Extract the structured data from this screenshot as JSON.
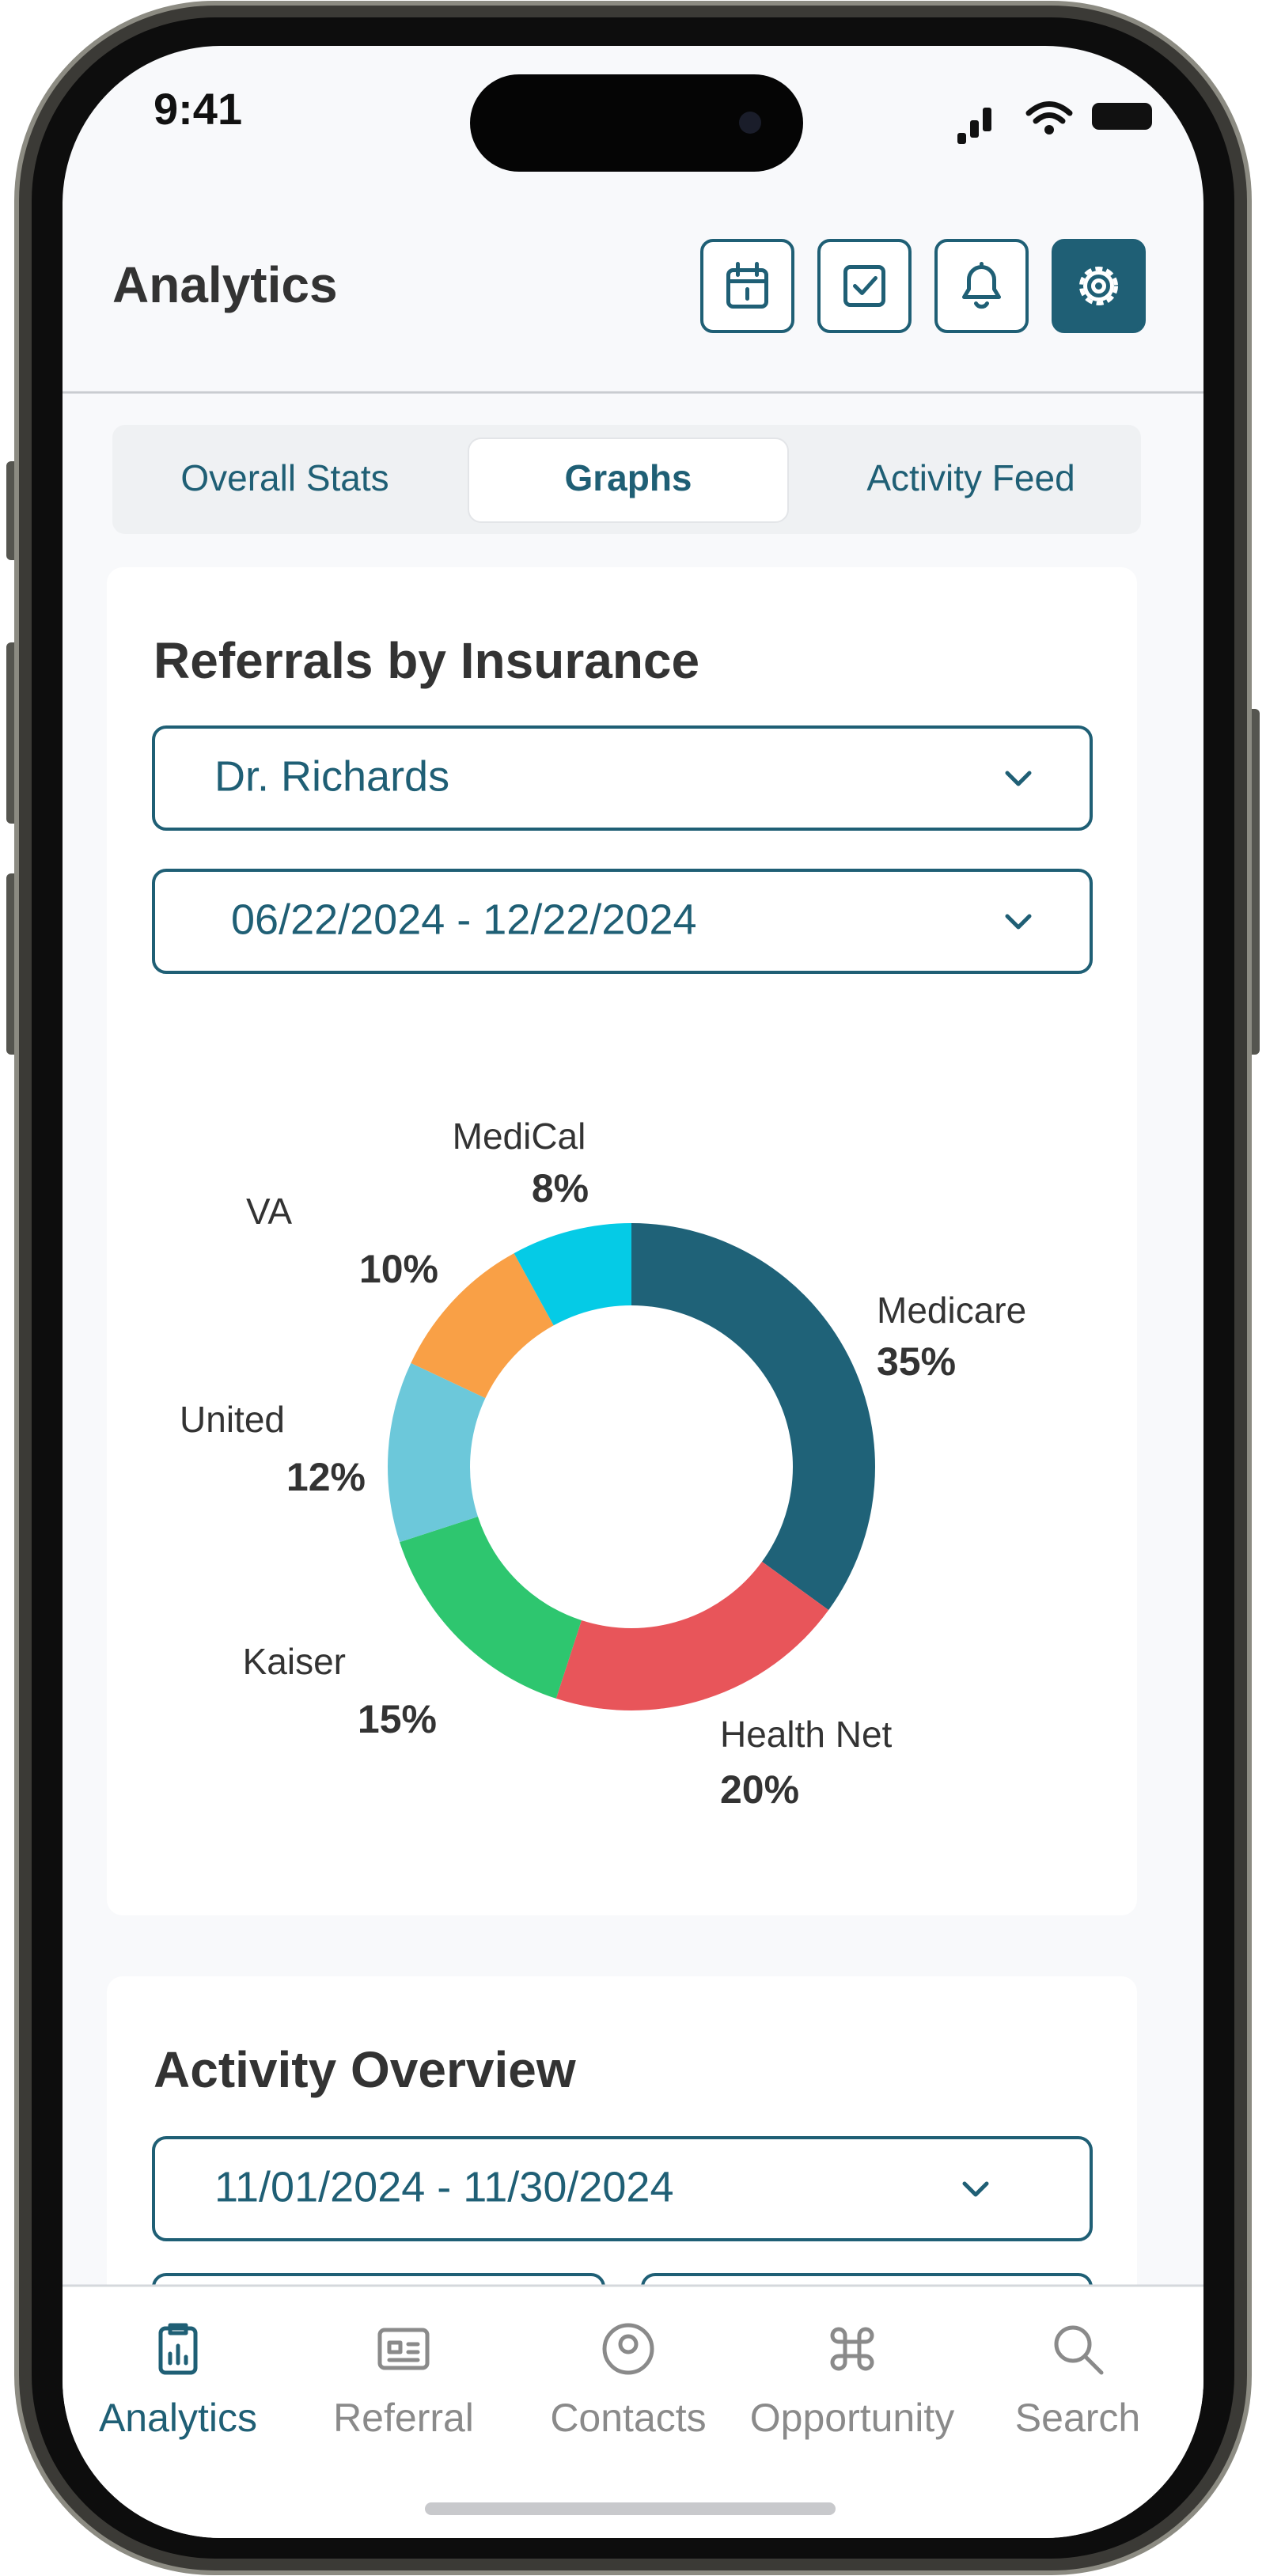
{
  "status_bar": {
    "time": "9:41"
  },
  "header": {
    "title": "Analytics"
  },
  "tabs": [
    "Overall Stats",
    "Graphs",
    "Activity Feed"
  ],
  "referrals_card": {
    "doctor_filter": "Dr. Richards",
    "date_range": "06/22/2024 - 12/22/2024"
  },
  "chart_data": {
    "type": "pie",
    "title": "Referrals by Insurance",
    "categories": [
      "Medicare",
      "Health Net",
      "Kaiser",
      "United",
      "VA",
      "MediCal"
    ],
    "values": [
      35,
      20,
      15,
      12,
      10,
      8
    ],
    "value_labels": [
      "35%",
      "20%",
      "15%",
      "12%",
      "10%",
      "8%"
    ],
    "colors": [
      "#1f6278",
      "#e8555a",
      "#2ec66f",
      "#6cc8da",
      "#f9a046",
      "#05cbe6"
    ],
    "donut": true
  },
  "activity_card": {
    "title": "Activity Overview",
    "date_range": "11/01/2024 - 11/30/2024"
  },
  "bottom_nav": [
    "Analytics",
    "Referral",
    "Contacts",
    "Opportunity",
    "Search"
  ]
}
